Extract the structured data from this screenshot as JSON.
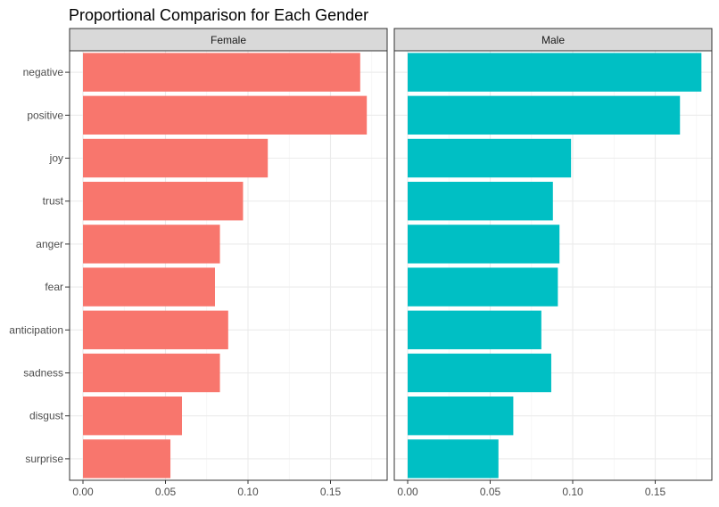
{
  "title": "Proportional Comparison for Each Gender",
  "chart_data": {
    "type": "bar",
    "orientation": "horizontal",
    "title": "Proportional Comparison for Each Gender",
    "xlabel": "",
    "ylabel": "",
    "categories": [
      "negative",
      "positive",
      "joy",
      "trust",
      "anger",
      "fear",
      "anticipation",
      "sadness",
      "disgust",
      "surprise"
    ],
    "xlim": [
      0,
      0.18
    ],
    "x_ticks": [
      0.0,
      0.05,
      0.1,
      0.15
    ],
    "x_tick_labels": [
      "0.00",
      "0.05",
      "0.10",
      "0.15"
    ],
    "grid": true,
    "legend": "none",
    "facets": [
      {
        "name": "Female",
        "color": "#F8766D",
        "values": [
          0.168,
          0.172,
          0.112,
          0.097,
          0.083,
          0.08,
          0.088,
          0.083,
          0.06,
          0.053
        ]
      },
      {
        "name": "Male",
        "color": "#00BFC4",
        "values": [
          0.178,
          0.165,
          0.099,
          0.088,
          0.092,
          0.091,
          0.081,
          0.087,
          0.064,
          0.055
        ]
      }
    ]
  }
}
